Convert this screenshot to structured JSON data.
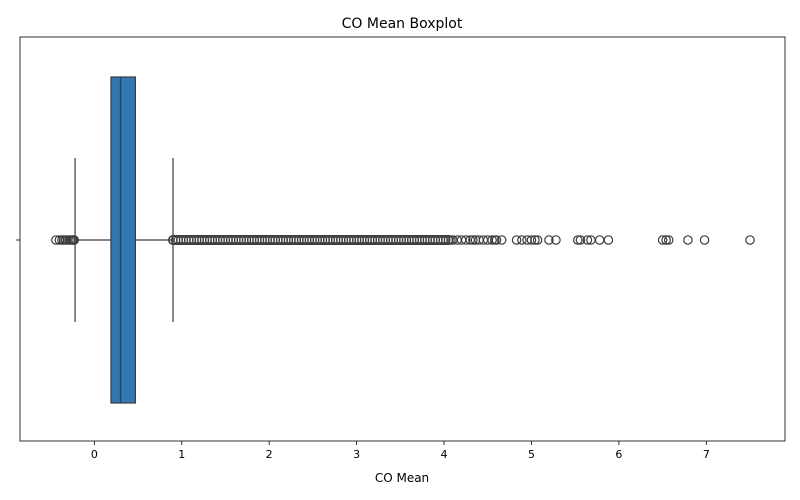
{
  "chart_data": {
    "type": "boxplot",
    "title": "CO Mean Boxplot",
    "xlabel": "CO Mean",
    "ylabel": "",
    "orientation": "horizontal",
    "xlim": [
      -0.85,
      7.9
    ],
    "xticks": [
      0,
      1,
      2,
      3,
      4,
      5,
      6,
      7
    ],
    "yticks": [
      ""
    ],
    "grid": false,
    "box": {
      "min_whisker": -0.22,
      "q1": 0.19,
      "median": 0.3,
      "q3": 0.47,
      "max_whisker": 0.9,
      "color": "#2f78b4"
    },
    "outliers_low": [
      -0.44,
      -0.4,
      -0.37,
      -0.35,
      -0.33,
      -0.31,
      -0.29,
      -0.27,
      -0.25,
      -0.24,
      -0.23
    ],
    "outliers_dense_range": [
      0.9,
      4.05
    ],
    "outliers_high": [
      4.08,
      4.1,
      4.15,
      4.2,
      4.25,
      4.3,
      4.33,
      4.36,
      4.4,
      4.45,
      4.5,
      4.55,
      4.58,
      4.6,
      4.66,
      4.83,
      4.89,
      4.95,
      5.0,
      5.04,
      5.07,
      5.2,
      5.28,
      5.53,
      5.56,
      5.64,
      5.68,
      5.78,
      5.88,
      6.5,
      6.54,
      6.57,
      6.79,
      6.98,
      7.5
    ]
  }
}
